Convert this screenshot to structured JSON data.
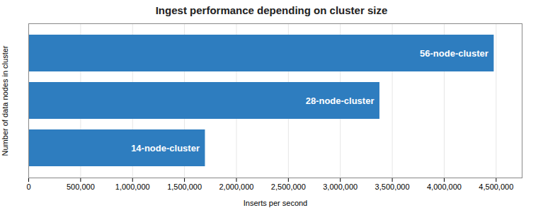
{
  "chart_data": {
    "type": "bar",
    "orientation": "horizontal",
    "title": "Ingest performance depending on cluster size",
    "xlabel": "Inserts per second",
    "ylabel": "Number of data nodes in cluster",
    "categories": [
      "14-node-cluster",
      "28-node-cluster",
      "56-node-cluster"
    ],
    "values": [
      1700000,
      3380000,
      4480000
    ],
    "color": "#2e7dbf",
    "xlim": [
      0,
      4750000
    ],
    "xticks": [
      0,
      {
        "value": 500000,
        "label": "500,000"
      },
      {
        "value": 1000000,
        "label": "1,000,000"
      },
      {
        "value": 1500000,
        "label": "1,500,000"
      },
      {
        "value": 2000000,
        "label": "2,000,000"
      },
      {
        "value": 2500000,
        "label": "2,500,000"
      },
      {
        "value": 3000000,
        "label": "3,000,000"
      },
      {
        "value": 3500000,
        "label": "3,500,000"
      },
      {
        "value": 4000000,
        "label": "4,000,000"
      },
      {
        "value": 4500000,
        "label": "4,500,000"
      }
    ],
    "grid": true,
    "tick_labels": "x"
  }
}
